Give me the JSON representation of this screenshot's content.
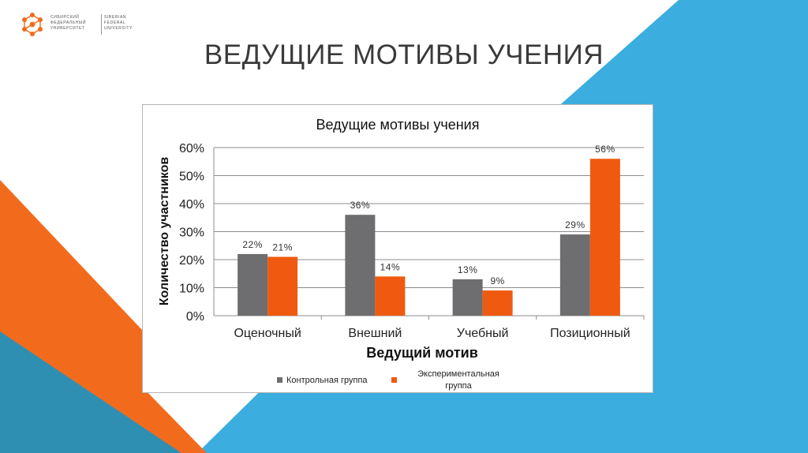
{
  "slide": {
    "title": "ВЕДУЩИЕ МОТИВЫ УЧЕНИЯ",
    "logo": {
      "ru_text": "СИБИРСКИЙ\nФЕДЕРАЛЬНЫЙ\nУНИВЕРСИТЕТ",
      "en_text": "SIBERIAN\nFEDERAL\nUNIVERSITY"
    }
  },
  "colors": {
    "orange": "#f26b1d",
    "blue": "#37a9dc",
    "teal": "#2f8fb3",
    "gray_bar": "#6e6e70",
    "orange_bar": "#f05a10"
  },
  "chart_data": {
    "type": "bar",
    "title": "Ведущие мотивы учения",
    "xlabel": "Ведущий мотив",
    "ylabel": "Количество участников",
    "categories": [
      "Оценочный",
      "Внешний",
      "Учебный",
      "Позиционный"
    ],
    "ylim": [
      0,
      60
    ],
    "yticks": [
      "0%",
      "10%",
      "20%",
      "30%",
      "40%",
      "50%",
      "60%"
    ],
    "grid": true,
    "legend_position": "bottom",
    "series": [
      {
        "name": "Контрольная группа",
        "values": [
          22,
          36,
          13,
          29
        ],
        "labels": [
          "22%",
          "36%",
          "13%",
          "29%"
        ],
        "color": "#6e6e70"
      },
      {
        "name": "Экспериментальная группа",
        "values": [
          21,
          14,
          9,
          56
        ],
        "labels": [
          "21%",
          "14%",
          "9%",
          "56%"
        ],
        "color": "#f05a10"
      }
    ]
  }
}
